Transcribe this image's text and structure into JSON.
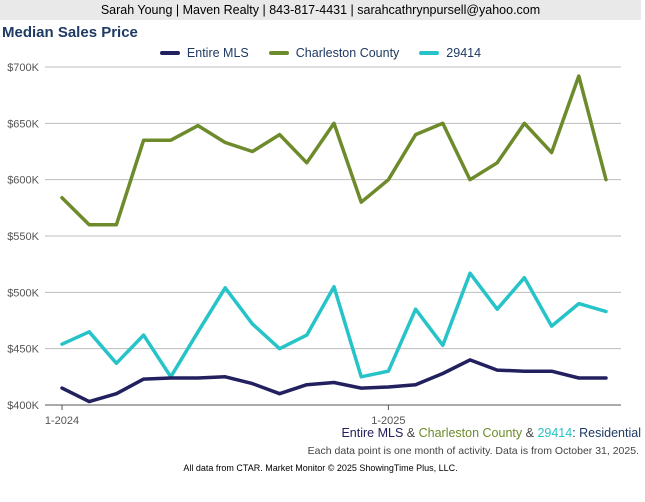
{
  "header": {
    "contact": "Sarah Young | Maven Realty | 843-817-4431 | sarahcathrynpursell@yahoo.com"
  },
  "colors": {
    "entire_mls": "#23205f",
    "charleston": "#6e8b2c",
    "zip": "#26c4c8",
    "title": "#1f3a63"
  },
  "chart_data": {
    "type": "line",
    "title": "Median Sales Price",
    "xlabel": "",
    "ylabel": "",
    "ylim": [
      400000,
      700000
    ],
    "yticks": [
      400000,
      450000,
      500000,
      550000,
      600000,
      650000,
      700000
    ],
    "ytick_labels": [
      "$400K",
      "$450K",
      "$500K",
      "$550K",
      "$600K",
      "$650K",
      "$700K"
    ],
    "x": [
      "2024-01",
      "2024-02",
      "2024-03",
      "2024-04",
      "2024-05",
      "2024-06",
      "2024-07",
      "2024-08",
      "2024-09",
      "2024-10",
      "2024-11",
      "2024-12",
      "2025-01",
      "2025-02",
      "2025-03",
      "2025-04",
      "2025-05",
      "2025-06",
      "2025-07",
      "2025-08",
      "2025-09"
    ],
    "xtick_labels": [
      {
        "at": "2024-01",
        "label": "1-2024"
      },
      {
        "at": "2025-01",
        "label": "1-2025"
      }
    ],
    "grid": true,
    "legend": "top",
    "series": [
      {
        "name": "Entire MLS",
        "color": "#23205f",
        "values": [
          415000,
          403000,
          410000,
          423000,
          424000,
          424000,
          425000,
          419000,
          410000,
          418000,
          420000,
          415000,
          416000,
          418000,
          428000,
          440000,
          431000,
          430000,
          430000,
          424000,
          424000
        ]
      },
      {
        "name": "Charleston County",
        "color": "#6e8b2c",
        "values": [
          584000,
          560000,
          560000,
          635000,
          635000,
          648000,
          633000,
          625000,
          640000,
          615000,
          650000,
          580000,
          600000,
          640000,
          650000,
          600000,
          615000,
          650000,
          624000,
          692000,
          600000
        ]
      },
      {
        "name": "29414",
        "color": "#26c4c8",
        "values": [
          454000,
          465000,
          437000,
          462000,
          425000,
          465000,
          504000,
          472000,
          450000,
          462000,
          505000,
          425000,
          430000,
          485000,
          453000,
          517000,
          485000,
          513000,
          470000,
          490000,
          483000
        ]
      }
    ]
  },
  "caption": {
    "entire": "Entire MLS",
    "amp1": " & ",
    "charleston": "Charleston County",
    "amp2": " & ",
    "zip": "29414",
    "suffix": ": Residential"
  },
  "note": "Each data point is one month of activity. Data is from October 31, 2025.",
  "footer": "All data from CTAR. Market Monitor © 2025 ShowingTime Plus, LLC."
}
